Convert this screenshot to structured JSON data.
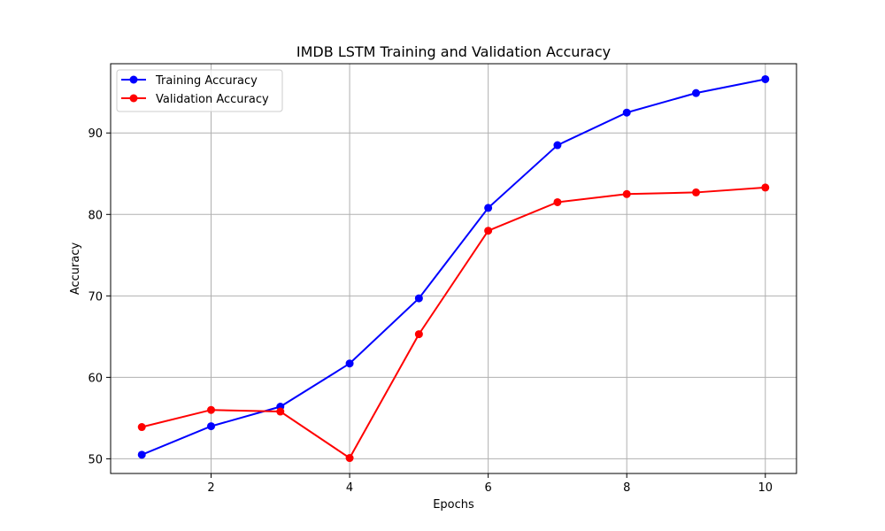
{
  "chart_data": {
    "type": "line",
    "title": "IMDB LSTM Training and Validation Accuracy",
    "xlabel": "Epochs",
    "ylabel": "Accuracy",
    "x": [
      1,
      2,
      3,
      4,
      5,
      6,
      7,
      8,
      9,
      10
    ],
    "xlim": [
      0.55,
      10.45
    ],
    "ylim": [
      48.2,
      98.5
    ],
    "xticks": [
      2,
      4,
      6,
      8,
      10
    ],
    "yticks": [
      50,
      60,
      70,
      80,
      90
    ],
    "xtick_labels": [
      "2",
      "4",
      "6",
      "8",
      "10"
    ],
    "ytick_labels": [
      "50",
      "60",
      "70",
      "80",
      "90"
    ],
    "grid": true,
    "legend": "top-left",
    "series": [
      {
        "name": "Training Accuracy",
        "color": "#0000ff",
        "marker": "circle",
        "values": [
          50.5,
          54.0,
          56.4,
          61.7,
          69.7,
          80.8,
          88.5,
          92.5,
          94.9,
          96.6
        ]
      },
      {
        "name": "Validation Accuracy",
        "color": "#ff0000",
        "marker": "circle",
        "values": [
          53.9,
          56.0,
          55.8,
          50.1,
          65.3,
          78.0,
          81.5,
          82.5,
          82.7,
          83.3
        ]
      }
    ]
  }
}
